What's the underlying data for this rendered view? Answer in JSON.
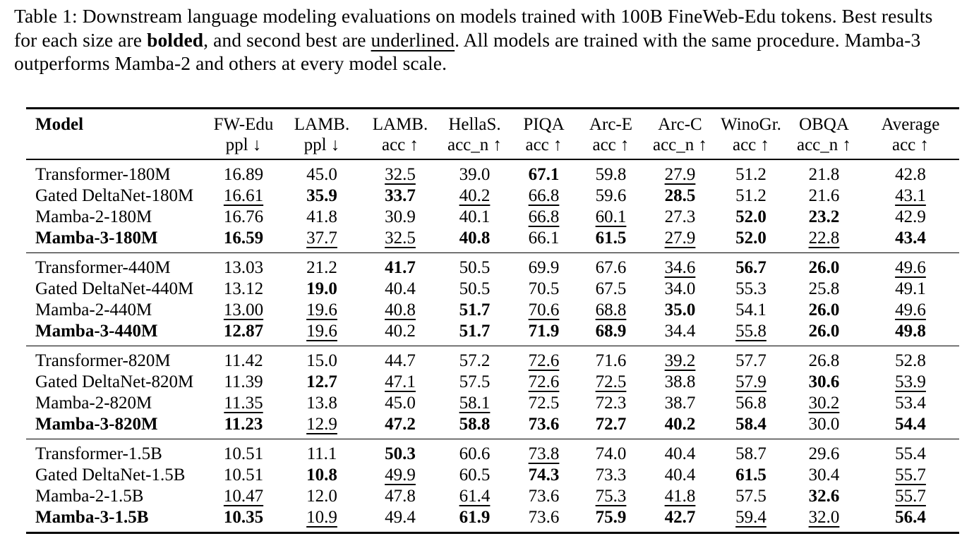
{
  "colors": {
    "text": "#000000",
    "background": "#ffffff",
    "rule": "#000000"
  },
  "caption": {
    "segments": [
      {
        "text": "Table 1: Downstream language modeling evaluations on models trained with 100B FineWeb-Edu tokens. Best results for each size are ",
        "style": "plain"
      },
      {
        "text": "bolded",
        "style": "bold"
      },
      {
        "text": ", and second best are ",
        "style": "plain"
      },
      {
        "text": "underlined",
        "style": "underline"
      },
      {
        "text": ". All models are trained with the same procedure. Mamba-3 outperforms Mamba-2 and others at every model scale.",
        "style": "plain"
      }
    ]
  },
  "table": {
    "columns": [
      {
        "name": "Model",
        "metric": ""
      },
      {
        "name": "FW-Edu",
        "metric": "ppl ↓"
      },
      {
        "name": "LAMB.",
        "metric": "ppl ↓"
      },
      {
        "name": "LAMB.",
        "metric": "acc ↑"
      },
      {
        "name": "HellaS.",
        "metric": "acc_n ↑"
      },
      {
        "name": "PIQA",
        "metric": "acc ↑"
      },
      {
        "name": "Arc-E",
        "metric": "acc ↑"
      },
      {
        "name": "Arc-C",
        "metric": "acc_n ↑"
      },
      {
        "name": "WinoGr.",
        "metric": "acc ↑"
      },
      {
        "name": "OBQA",
        "metric": "acc_n ↑"
      },
      {
        "name": "Average",
        "metric": "acc ↑"
      }
    ],
    "groups": [
      {
        "size": "180M",
        "rows": [
          {
            "model": "Transformer-180M",
            "model_style": "plain",
            "cells": [
              [
                "16.89",
                ""
              ],
              [
                "45.0",
                ""
              ],
              [
                "32.5",
                "u"
              ],
              [
                "39.0",
                ""
              ],
              [
                "67.1",
                "b"
              ],
              [
                "59.8",
                ""
              ],
              [
                "27.9",
                "u"
              ],
              [
                "51.2",
                ""
              ],
              [
                "21.8",
                ""
              ],
              [
                "42.8",
                ""
              ]
            ]
          },
          {
            "model": "Gated DeltaNet-180M",
            "model_style": "plain",
            "cells": [
              [
                "16.61",
                "u"
              ],
              [
                "35.9",
                "b"
              ],
              [
                "33.7",
                "b"
              ],
              [
                "40.2",
                "u"
              ],
              [
                "66.8",
                "u"
              ],
              [
                "59.6",
                ""
              ],
              [
                "28.5",
                "b"
              ],
              [
                "51.2",
                ""
              ],
              [
                "21.6",
                ""
              ],
              [
                "43.1",
                "u"
              ]
            ]
          },
          {
            "model": "Mamba-2-180M",
            "model_style": "plain",
            "cells": [
              [
                "16.76",
                ""
              ],
              [
                "41.8",
                ""
              ],
              [
                "30.9",
                ""
              ],
              [
                "40.1",
                ""
              ],
              [
                "66.8",
                "u"
              ],
              [
                "60.1",
                "u"
              ],
              [
                "27.3",
                ""
              ],
              [
                "52.0",
                "b"
              ],
              [
                "23.2",
                "b"
              ],
              [
                "42.9",
                ""
              ]
            ]
          },
          {
            "model": "Mamba-3-180M",
            "model_style": "bold",
            "cells": [
              [
                "16.59",
                "b"
              ],
              [
                "37.7",
                "u"
              ],
              [
                "32.5",
                "u"
              ],
              [
                "40.8",
                "b"
              ],
              [
                "66.1",
                ""
              ],
              [
                "61.5",
                "b"
              ],
              [
                "27.9",
                "u"
              ],
              [
                "52.0",
                "b"
              ],
              [
                "22.8",
                "u"
              ],
              [
                "43.4",
                "b"
              ]
            ]
          }
        ]
      },
      {
        "size": "440M",
        "rows": [
          {
            "model": "Transformer-440M",
            "model_style": "plain",
            "cells": [
              [
                "13.03",
                ""
              ],
              [
                "21.2",
                ""
              ],
              [
                "41.7",
                "b"
              ],
              [
                "50.5",
                ""
              ],
              [
                "69.9",
                ""
              ],
              [
                "67.6",
                ""
              ],
              [
                "34.6",
                "u"
              ],
              [
                "56.7",
                "b"
              ],
              [
                "26.0",
                "b"
              ],
              [
                "49.6",
                "u"
              ]
            ]
          },
          {
            "model": "Gated DeltaNet-440M",
            "model_style": "plain",
            "cells": [
              [
                "13.12",
                ""
              ],
              [
                "19.0",
                "b"
              ],
              [
                "40.4",
                ""
              ],
              [
                "50.5",
                ""
              ],
              [
                "70.5",
                ""
              ],
              [
                "67.5",
                ""
              ],
              [
                "34.0",
                ""
              ],
              [
                "55.3",
                ""
              ],
              [
                "25.8",
                ""
              ],
              [
                "49.1",
                ""
              ]
            ]
          },
          {
            "model": "Mamba-2-440M",
            "model_style": "plain",
            "cells": [
              [
                "13.00",
                "u"
              ],
              [
                "19.6",
                "u"
              ],
              [
                "40.8",
                "u"
              ],
              [
                "51.7",
                "b"
              ],
              [
                "70.6",
                "u"
              ],
              [
                "68.8",
                "u"
              ],
              [
                "35.0",
                "b"
              ],
              [
                "54.1",
                ""
              ],
              [
                "26.0",
                "b"
              ],
              [
                "49.6",
                "u"
              ]
            ]
          },
          {
            "model": "Mamba-3-440M",
            "model_style": "bold",
            "cells": [
              [
                "12.87",
                "b"
              ],
              [
                "19.6",
                "u"
              ],
              [
                "40.2",
                ""
              ],
              [
                "51.7",
                "b"
              ],
              [
                "71.9",
                "b"
              ],
              [
                "68.9",
                "b"
              ],
              [
                "34.4",
                ""
              ],
              [
                "55.8",
                "u"
              ],
              [
                "26.0",
                "b"
              ],
              [
                "49.8",
                "b"
              ]
            ]
          }
        ]
      },
      {
        "size": "820M",
        "rows": [
          {
            "model": "Transformer-820M",
            "model_style": "plain",
            "cells": [
              [
                "11.42",
                ""
              ],
              [
                "15.0",
                ""
              ],
              [
                "44.7",
                ""
              ],
              [
                "57.2",
                ""
              ],
              [
                "72.6",
                "u"
              ],
              [
                "71.6",
                ""
              ],
              [
                "39.2",
                "u"
              ],
              [
                "57.7",
                ""
              ],
              [
                "26.8",
                ""
              ],
              [
                "52.8",
                ""
              ]
            ]
          },
          {
            "model": "Gated DeltaNet-820M",
            "model_style": "plain",
            "cells": [
              [
                "11.39",
                ""
              ],
              [
                "12.7",
                "b"
              ],
              [
                "47.1",
                "u"
              ],
              [
                "57.5",
                ""
              ],
              [
                "72.6",
                "u"
              ],
              [
                "72.5",
                "u"
              ],
              [
                "38.8",
                ""
              ],
              [
                "57.9",
                "u"
              ],
              [
                "30.6",
                "b"
              ],
              [
                "53.9",
                "u"
              ]
            ]
          },
          {
            "model": "Mamba-2-820M",
            "model_style": "plain",
            "cells": [
              [
                "11.35",
                "u"
              ],
              [
                "13.8",
                ""
              ],
              [
                "45.0",
                ""
              ],
              [
                "58.1",
                "u"
              ],
              [
                "72.5",
                ""
              ],
              [
                "72.3",
                ""
              ],
              [
                "38.7",
                ""
              ],
              [
                "56.8",
                ""
              ],
              [
                "30.2",
                "u"
              ],
              [
                "53.4",
                ""
              ]
            ]
          },
          {
            "model": "Mamba-3-820M",
            "model_style": "bold",
            "cells": [
              [
                "11.23",
                "b"
              ],
              [
                "12.9",
                "u"
              ],
              [
                "47.2",
                "b"
              ],
              [
                "58.8",
                "b"
              ],
              [
                "73.6",
                "b"
              ],
              [
                "72.7",
                "b"
              ],
              [
                "40.2",
                "b"
              ],
              [
                "58.4",
                "b"
              ],
              [
                "30.0",
                ""
              ],
              [
                "54.4",
                "b"
              ]
            ]
          }
        ]
      },
      {
        "size": "1.5B",
        "rows": [
          {
            "model": "Transformer-1.5B",
            "model_style": "plain",
            "cells": [
              [
                "10.51",
                ""
              ],
              [
                "11.1",
                ""
              ],
              [
                "50.3",
                "b"
              ],
              [
                "60.6",
                ""
              ],
              [
                "73.8",
                "u"
              ],
              [
                "74.0",
                ""
              ],
              [
                "40.4",
                ""
              ],
              [
                "58.7",
                ""
              ],
              [
                "29.6",
                ""
              ],
              [
                "55.4",
                ""
              ]
            ]
          },
          {
            "model": "Gated DeltaNet-1.5B",
            "model_style": "plain",
            "cells": [
              [
                "10.51",
                ""
              ],
              [
                "10.8",
                "b"
              ],
              [
                "49.9",
                "u"
              ],
              [
                "60.5",
                ""
              ],
              [
                "74.3",
                "b"
              ],
              [
                "73.3",
                ""
              ],
              [
                "40.4",
                ""
              ],
              [
                "61.5",
                "b"
              ],
              [
                "30.4",
                ""
              ],
              [
                "55.7",
                "u"
              ]
            ]
          },
          {
            "model": "Mamba-2-1.5B",
            "model_style": "plain",
            "cells": [
              [
                "10.47",
                "u"
              ],
              [
                "12.0",
                ""
              ],
              [
                "47.8",
                ""
              ],
              [
                "61.4",
                "u"
              ],
              [
                "73.6",
                ""
              ],
              [
                "75.3",
                "u"
              ],
              [
                "41.8",
                "u"
              ],
              [
                "57.5",
                ""
              ],
              [
                "32.6",
                "b"
              ],
              [
                "55.7",
                "u"
              ]
            ]
          },
          {
            "model": "Mamba-3-1.5B",
            "model_style": "bold",
            "cells": [
              [
                "10.35",
                "b"
              ],
              [
                "10.9",
                "u"
              ],
              [
                "49.4",
                ""
              ],
              [
                "61.9",
                "b"
              ],
              [
                "73.6",
                ""
              ],
              [
                "75.9",
                "b"
              ],
              [
                "42.7",
                "b"
              ],
              [
                "59.4",
                "u"
              ],
              [
                "32.0",
                "u"
              ],
              [
                "56.4",
                "b"
              ]
            ]
          }
        ]
      }
    ]
  }
}
